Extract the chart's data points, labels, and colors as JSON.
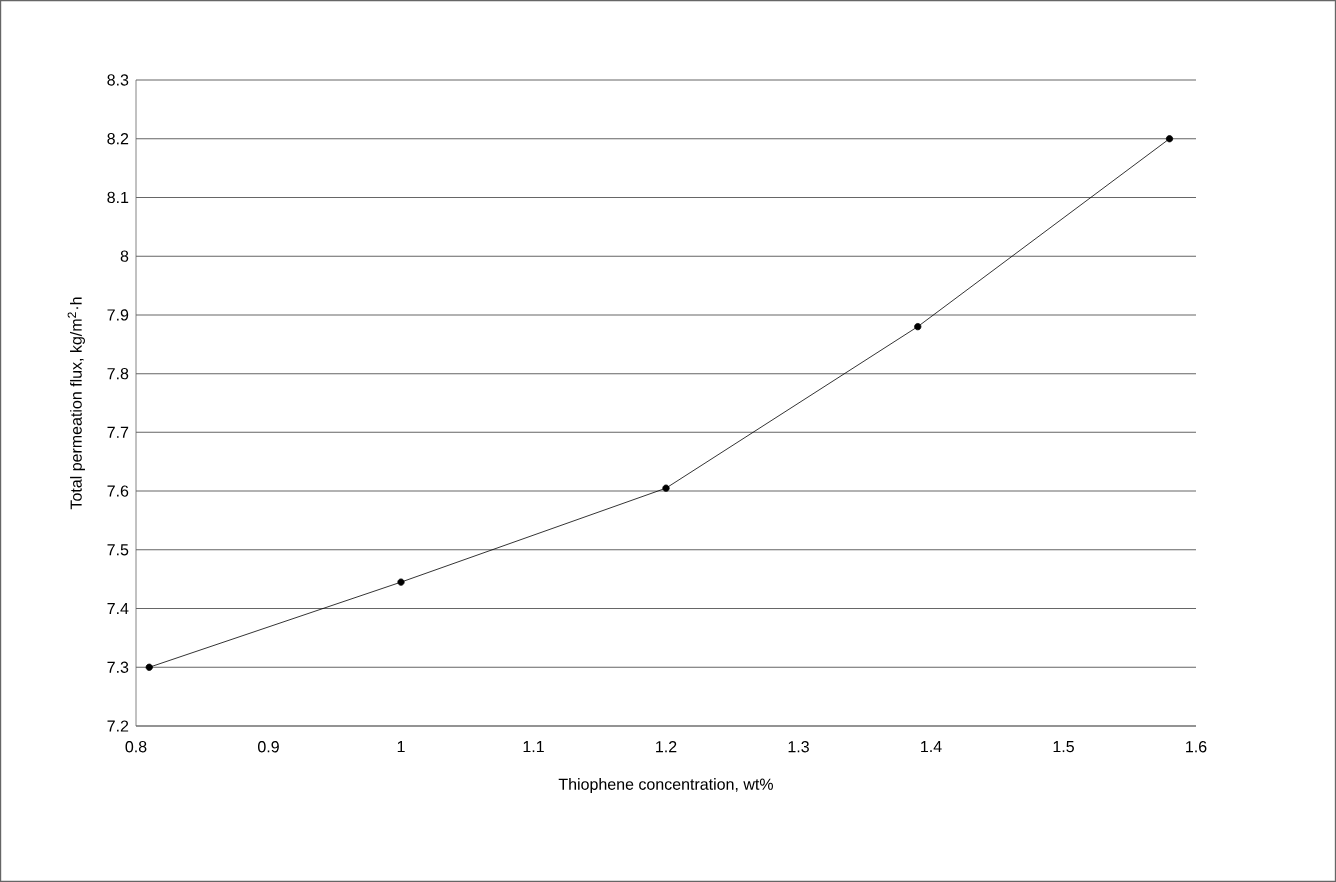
{
  "chart_data": {
    "type": "line",
    "xlabel": "Thiophene concentration, wt%",
    "ylabel": "Total permeation flux, kg/m$^{2}$·h",
    "x": [
      0.81,
      1.0,
      1.2,
      1.39,
      1.58
    ],
    "series": [
      {
        "color": "#000000",
        "values": [
          7.3,
          7.445,
          7.605,
          7.88,
          8.2
        ]
      }
    ],
    "xlim": [
      0.8,
      1.6
    ],
    "xticks": [
      0.8,
      0.9,
      1,
      1.1,
      1.2,
      1.3,
      1.4,
      1.5,
      1.6
    ],
    "ylim": [
      7.2,
      8.3
    ],
    "yticks": [
      7.2,
      7.3,
      7.4,
      7.5,
      7.6,
      7.7,
      7.8,
      7.9,
      8,
      8.1,
      8.2,
      8.3
    ],
    "grid": "y",
    "marker": "circle",
    "line_style": "solid"
  }
}
